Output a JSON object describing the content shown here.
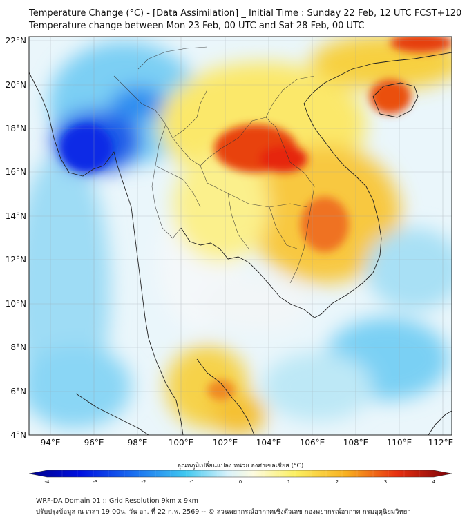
{
  "header": {
    "title_line1": "Temperature Change (°C) - [Data Assimilation] _ Initial Time : Sunday 22 Feb, 12 UTC FCST+120",
    "title_line2": "Temperature change between Mon 23 Feb, 00 UTC and Sat 28 Feb, 00 UTC"
  },
  "map": {
    "lat_labels": [
      "22°N",
      "20°N",
      "18°N",
      "16°N",
      "14°N",
      "12°N",
      "10°N",
      "8°N",
      "6°N",
      "4°N"
    ],
    "lon_labels": [
      "94°E",
      "96°E",
      "98°E",
      "100°E",
      "102°E",
      "104°E",
      "106°E",
      "108°E",
      "110°E",
      "112°E"
    ]
  },
  "colorbar": {
    "title": "อุณหภูมิเปลี่ยนแปลง หน่วย องศาเซลเซียส (°C)",
    "ticks": [
      "-4",
      "-3",
      "-2",
      "-1",
      "0",
      "1",
      "2",
      "3",
      "4"
    ],
    "min": -4,
    "max": 4
  },
  "footer": {
    "line1": "WRF-DA Domain 01 :: Grid Resolution 9km x 9km",
    "line2": "ปรับปรุงข้อมูล ณ เวลา 19:00น. วัน อา. ที่ 22 ก.พ. 2569 -- © ส่วนพยากรณ์อากาศเชิงตัวเลข กองพยากรณ์อากาศ กรมอุตุนิยมวิทยา"
  },
  "colors": {
    "cold_strong": "#0a1ee0",
    "cold": "#2aa8f0",
    "light_cold": "#bfe8f8",
    "neutral": "#f6f8fb",
    "warm_light": "#fbf07a",
    "warm": "#f5b030",
    "hot": "#e43010"
  }
}
